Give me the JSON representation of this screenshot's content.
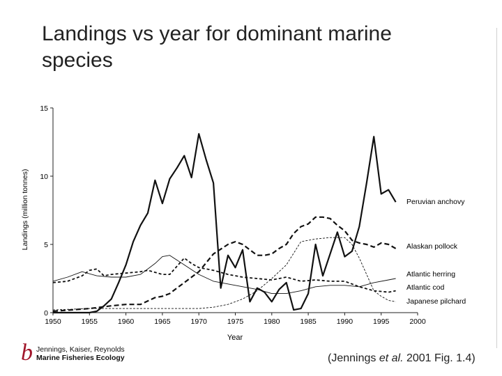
{
  "slide": {
    "title": "Landings vs year for dominant marine species"
  },
  "credit": {
    "mark": "b",
    "line1": "Jennings, Kaiser, Reynolds",
    "line2": "Marine Fisheries Ecology"
  },
  "citation": {
    "open": "(Jennings ",
    "etal": "et al.",
    "rest": " 2001 Fig. 1.4)"
  },
  "chart_data": {
    "type": "line",
    "title": "",
    "xlabel": "Year",
    "ylabel": "Landings (million tonnes)",
    "xlim": [
      1950,
      2000
    ],
    "ylim": [
      0,
      15
    ],
    "xticks": [
      1950,
      1955,
      1960,
      1965,
      1970,
      1975,
      1980,
      1985,
      1990,
      1995,
      2000
    ],
    "yticks": [
      0,
      5,
      10,
      15
    ],
    "grid": false,
    "legend": "labels at right end of each line",
    "series": [
      {
        "name": "Peruvian anchovy",
        "style": "solid-thick",
        "x": [
          1950,
          1951,
          1952,
          1953,
          1954,
          1955,
          1956,
          1957,
          1958,
          1959,
          1960,
          1961,
          1962,
          1963,
          1964,
          1965,
          1966,
          1967,
          1968,
          1969,
          1970,
          1971,
          1972,
          1973,
          1974,
          1975,
          1976,
          1977,
          1978,
          1979,
          1980,
          1981,
          1982,
          1983,
          1984,
          1985,
          1986,
          1987,
          1988,
          1989,
          1990,
          1991,
          1992,
          1993,
          1994,
          1995,
          1996,
          1997
        ],
        "y": [
          0.0,
          0.0,
          0.0,
          0.0,
          0.0,
          0.0,
          0.1,
          0.5,
          1.0,
          2.2,
          3.5,
          5.2,
          6.4,
          7.3,
          9.7,
          8.0,
          9.8,
          10.6,
          11.5,
          9.9,
          13.1,
          11.2,
          9.5,
          1.8,
          4.2,
          3.3,
          4.6,
          0.8,
          1.8,
          1.5,
          0.8,
          1.7,
          2.2,
          0.2,
          0.3,
          1.4,
          5.0,
          2.7,
          4.3,
          5.9,
          4.1,
          4.5,
          6.3,
          9.5,
          12.9,
          8.7,
          9.0,
          8.1
        ]
      },
      {
        "name": "Alaskan pollock",
        "style": "dashed-thick",
        "x": [
          1950,
          1955,
          1958,
          1960,
          1962,
          1964,
          1965,
          1966,
          1967,
          1968,
          1970,
          1972,
          1974,
          1975,
          1976,
          1977,
          1978,
          1979,
          1980,
          1981,
          1982,
          1983,
          1984,
          1985,
          1986,
          1987,
          1988,
          1989,
          1990,
          1991,
          1992,
          1993,
          1994,
          1995,
          1996,
          1997
        ],
        "y": [
          0.1,
          0.3,
          0.5,
          0.6,
          0.6,
          1.1,
          1.2,
          1.4,
          1.8,
          2.2,
          3.0,
          4.3,
          5.0,
          5.2,
          5.0,
          4.6,
          4.2,
          4.2,
          4.3,
          4.7,
          5.0,
          5.8,
          6.3,
          6.5,
          7.0,
          7.0,
          6.9,
          6.4,
          6.0,
          5.3,
          5.1,
          5.0,
          4.8,
          5.1,
          5.0,
          4.7
        ]
      },
      {
        "name": "Atlantic herring",
        "style": "solid-thin",
        "x": [
          1950,
          1952,
          1954,
          1956,
          1958,
          1960,
          1962,
          1964,
          1965,
          1966,
          1968,
          1970,
          1972,
          1975,
          1978,
          1980,
          1982,
          1984,
          1986,
          1988,
          1990,
          1992,
          1994,
          1996,
          1997
        ],
        "y": [
          2.3,
          2.6,
          3.0,
          2.7,
          2.6,
          2.6,
          2.8,
          3.6,
          4.1,
          4.2,
          3.5,
          2.8,
          2.3,
          2.0,
          1.7,
          1.4,
          1.4,
          1.6,
          1.9,
          2.0,
          2.0,
          1.9,
          2.2,
          2.4,
          2.5
        ]
      },
      {
        "name": "Atlantic cod",
        "style": "dashed-medium",
        "x": [
          1950,
          1952,
          1954,
          1955,
          1956,
          1957,
          1958,
          1960,
          1962,
          1963,
          1965,
          1966,
          1967,
          1968,
          1969,
          1970,
          1972,
          1974,
          1976,
          1978,
          1980,
          1982,
          1984,
          1986,
          1988,
          1990,
          1992,
          1994,
          1996,
          1997
        ],
        "y": [
          2.2,
          2.3,
          2.7,
          3.1,
          3.2,
          2.7,
          2.8,
          2.9,
          3.0,
          3.1,
          2.8,
          2.8,
          3.4,
          4.0,
          3.6,
          3.3,
          3.1,
          2.8,
          2.6,
          2.5,
          2.4,
          2.6,
          2.3,
          2.4,
          2.3,
          2.3,
          1.9,
          1.6,
          1.5,
          1.6
        ]
      },
      {
        "name": "Japanese pilchard",
        "style": "dashed-thin",
        "x": [
          1950,
          1955,
          1960,
          1965,
          1968,
          1970,
          1972,
          1974,
          1976,
          1978,
          1980,
          1982,
          1984,
          1986,
          1988,
          1990,
          1991,
          1992,
          1993,
          1994,
          1995,
          1996,
          1997
        ],
        "y": [
          0.2,
          0.3,
          0.3,
          0.3,
          0.3,
          0.3,
          0.4,
          0.6,
          1.0,
          1.6,
          2.5,
          3.5,
          5.2,
          5.4,
          5.5,
          5.5,
          5.0,
          4.0,
          2.8,
          1.6,
          1.2,
          0.9,
          0.8
        ]
      }
    ]
  }
}
